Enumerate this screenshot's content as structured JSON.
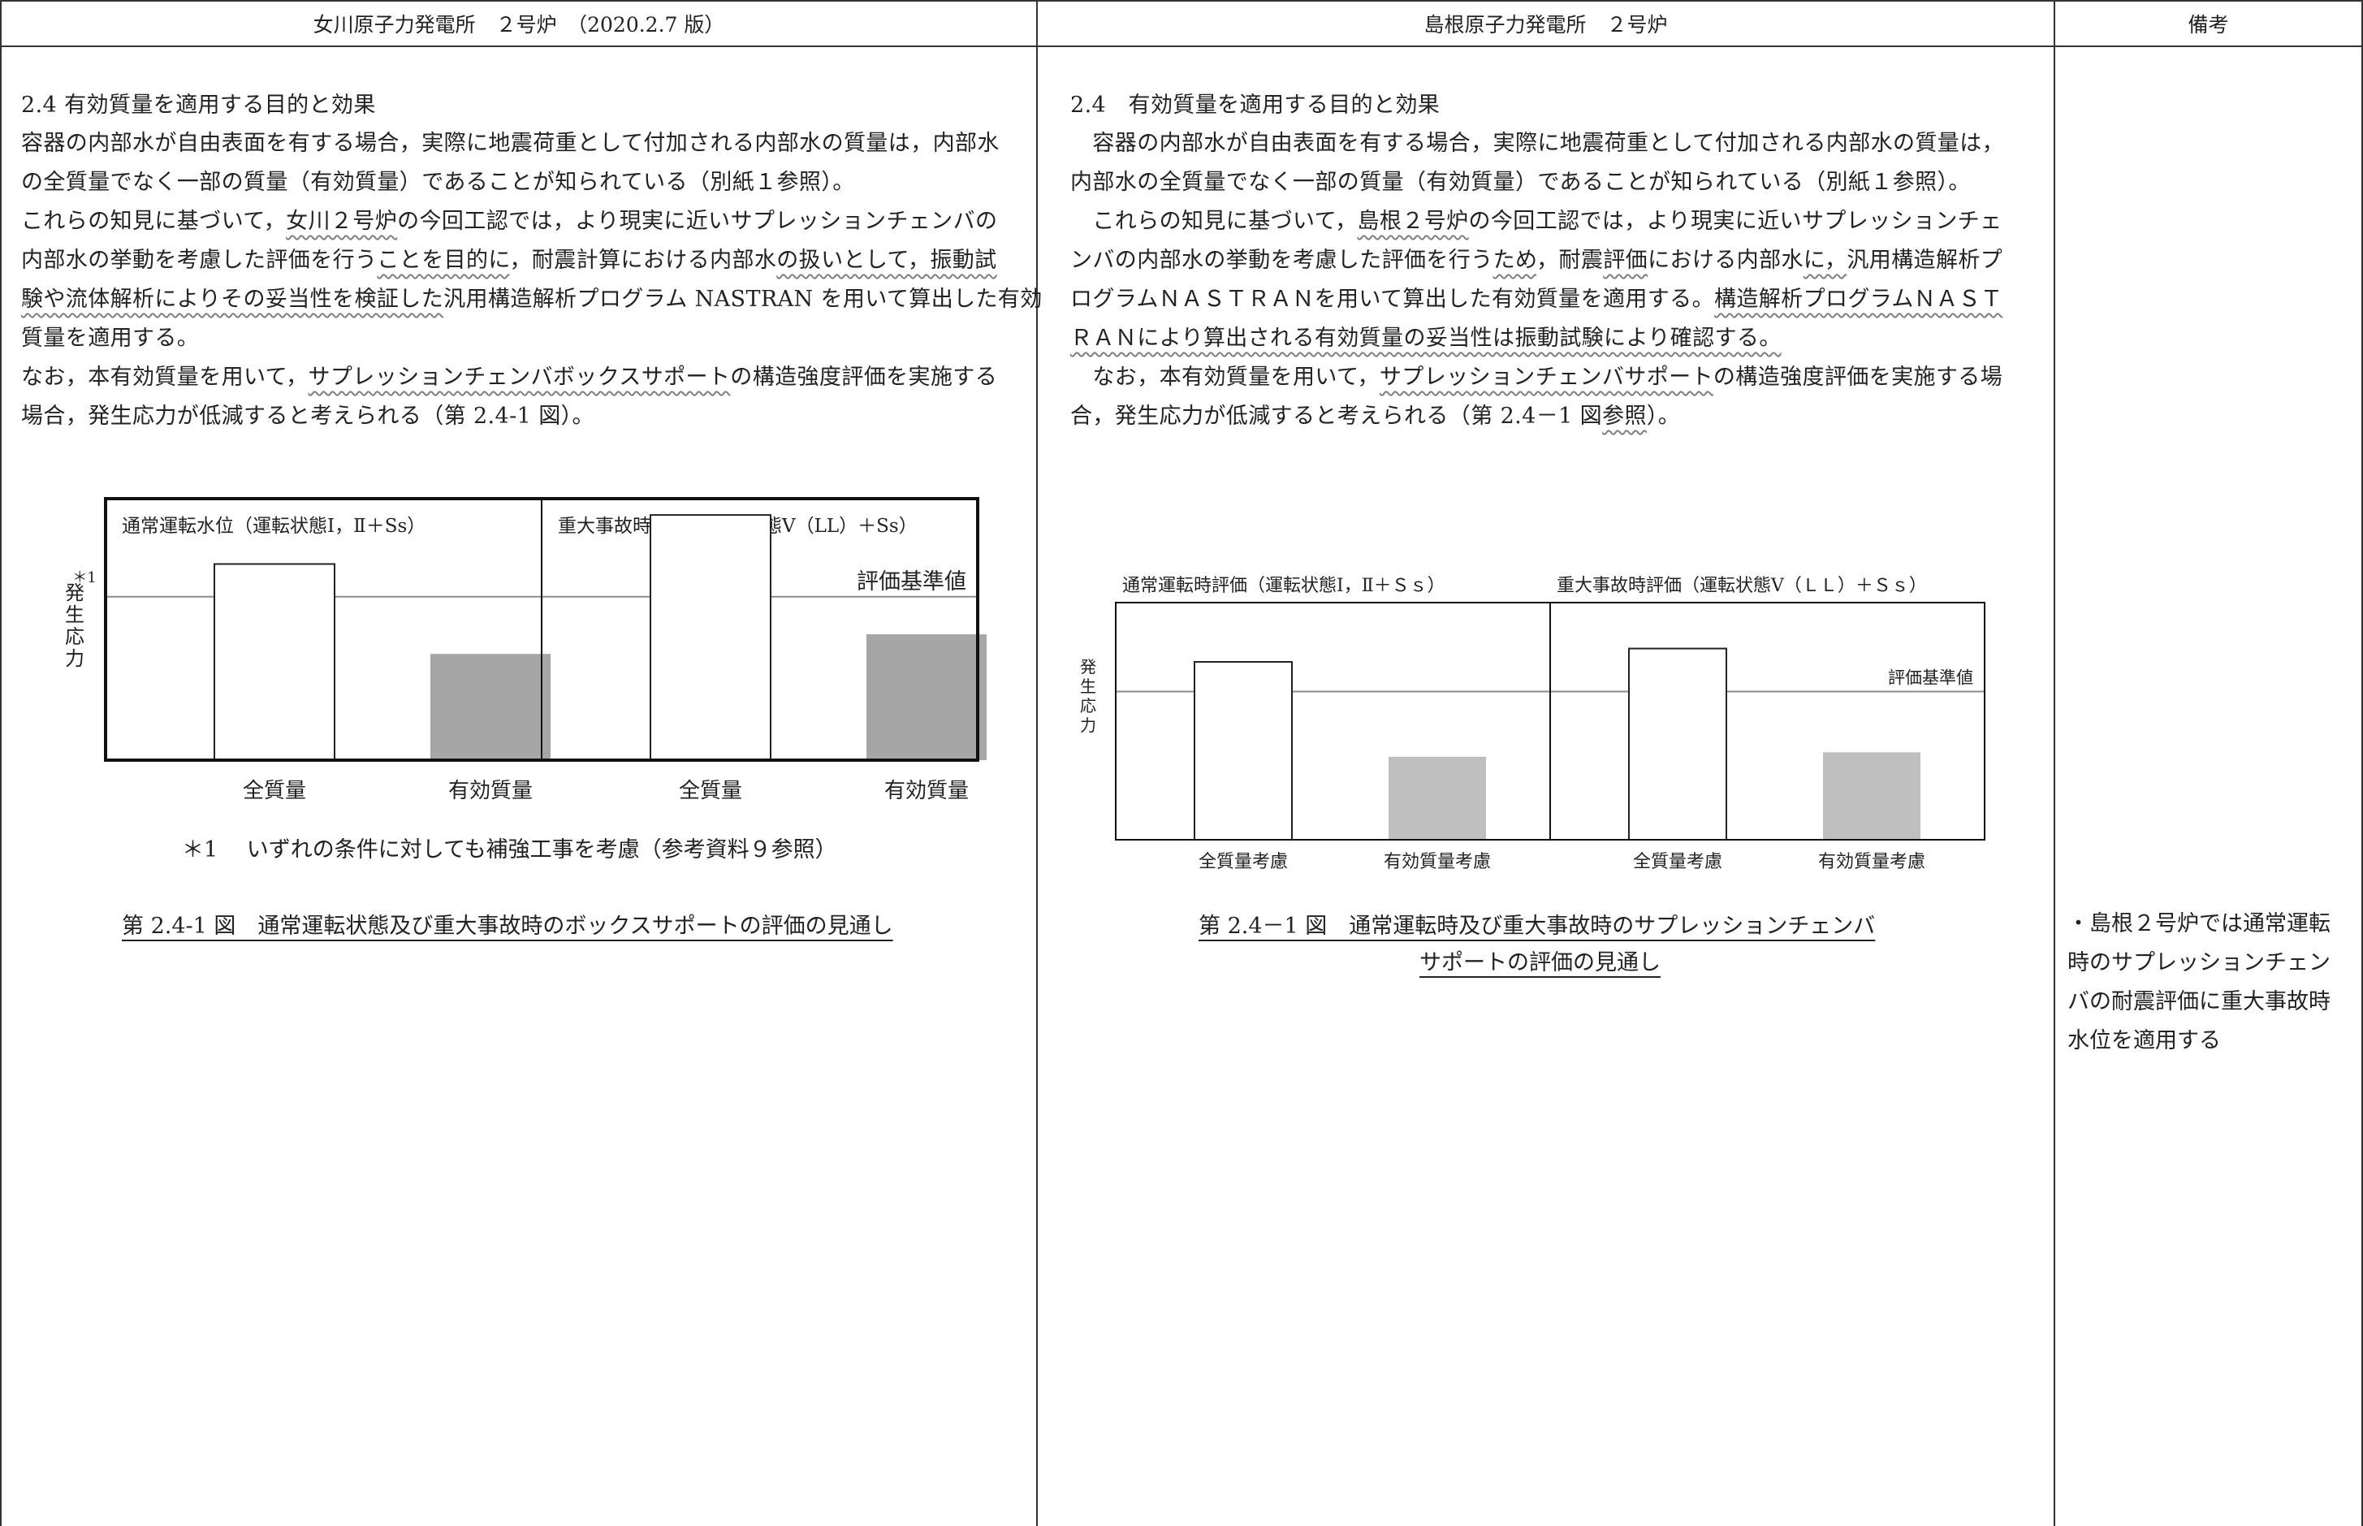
{
  "header": {
    "onagawa": "女川原子力発電所　２号炉　（2020.2.7 版）",
    "shimane": "島根原子力発電所　２号炉",
    "remarks": "備考"
  },
  "left": {
    "heading": "2.4 有効質量を適用する目的と効果",
    "lines": [
      [
        {
          "t": "容器の内部水が自由表面を有する場合，実際に地震荷重として付加される内部水の質量は，内部水"
        }
      ],
      [
        {
          "t": "の全質量でなく一部の質量（有効質量）であることが知られている（別紙１参照）。"
        }
      ],
      [
        {
          "t": "これらの知見に基づいて，"
        },
        {
          "t": "女川２号炉",
          "u": true
        },
        {
          "t": "の今回工認では，より現実に近いサプレッションチェンバの"
        }
      ],
      [
        {
          "t": "内部水の挙動を考慮した評価を行う"
        },
        {
          "t": "ことを目的に",
          "u": true
        },
        {
          "t": "，耐震計算における内部水"
        },
        {
          "t": "の扱いとして，振動試",
          "u": true
        }
      ],
      [
        {
          "t": "験や流体解析によりその妥当性を検証した",
          "u": true
        },
        {
          "t": "汎用構造解析プログラム NASTRAN を用いて算出した有効"
        }
      ],
      [
        {
          "t": "質量を適用する。"
        }
      ],
      [
        {
          "t": "なお，本有効質量を用いて，"
        },
        {
          "t": "サプレッションチェンバボックスサポート",
          "u": true
        },
        {
          "t": "の構造強度評価を実施する"
        }
      ],
      [
        {
          "t": "場合，発生応力が低減すると考えられる（第 2.4-1 図）。"
        }
      ]
    ],
    "chart_note": "＊1　 いずれの条件に対しても補強工事を考慮（参考資料９参照）",
    "caption": "第 2.4-1 図　通常運転状態及び重大事故時のボックスサポートの評価の見通し"
  },
  "middle": {
    "heading": "2.4　有効質量を適用する目的と効果",
    "lines": [
      [
        {
          "t": "　容器の内部水が自由表面を有する場合，実際に地震荷重として付加される内部水の質量は，"
        }
      ],
      [
        {
          "t": "内部水の全質量でなく一部の質量（有効質量）であることが知られている（別紙１参照）。"
        }
      ],
      [
        {
          "t": "　これらの知見に基づいて，"
        },
        {
          "t": "島根２号炉",
          "u": true
        },
        {
          "t": "の今回工認では，より現実に近いサプレッションチェ"
        }
      ],
      [
        {
          "t": "ンバの内部水の挙動を考慮した評価を行う"
        },
        {
          "t": "ため",
          "u": true
        },
        {
          "t": "，耐震"
        },
        {
          "t": "評価",
          "u": true
        },
        {
          "t": "における内部水"
        },
        {
          "t": "に，",
          "u": true
        },
        {
          "t": "汎用構造解析プ"
        }
      ],
      [
        {
          "t": "ログラムＮＡＳＴＲＡＮを用いて算出した有効質量を適用する。"
        },
        {
          "t": "構造解析プログラムＮＡＳＴ",
          "u": true
        }
      ],
      [
        {
          "t": "ＲＡＮにより算出される有効質量の妥当性は振動試験により確認する。",
          "u": true
        }
      ],
      [
        {
          "t": "　なお，本有効質量を用いて，"
        },
        {
          "t": "サプレッションチェンバサポート",
          "u": true
        },
        {
          "t": "の構造強度評価を実施する場"
        }
      ],
      [
        {
          "t": "合，発生応力が低減すると考えられる（第 2.4－1 図"
        },
        {
          "t": "参照",
          "u": true
        },
        {
          "t": "）。"
        }
      ]
    ],
    "caption_lines": [
      "第 2.4－1 図　通常運転時及び重大事故時のサプレッションチェンバ",
      "サポートの評価の見通し"
    ]
  },
  "right": {
    "remark": "・島根２号炉では通常運転時のサプレッションチェンバの耐震評価に重大事故時水位を適用する"
  },
  "chart_data": [
    {
      "type": "bar",
      "chart": "onagawa",
      "panels": [
        {
          "title": "通常運転水位（運転状態Ⅰ，Ⅱ＋Ss）",
          "categories": [
            "全質量",
            "有効質量"
          ],
          "values": [
            1.2,
            0.65
          ]
        },
        {
          "title": "重大事故時水位（運転状態Ⅴ（LL）＋Ss）",
          "categories": [
            "全質量",
            "有効質量"
          ],
          "values": [
            1.5,
            0.77
          ]
        }
      ],
      "ylabel": "発生応力",
      "ylabel_mark": "＊1",
      "threshold": 1.0,
      "threshold_label": "評価基準値",
      "colors": {
        "full": "#ffffff",
        "effective": "#a6a6a6"
      }
    },
    {
      "type": "bar",
      "chart": "shimane",
      "panels": [
        {
          "title": "通常運転時評価（運転状態Ⅰ，Ⅱ＋Ｓｓ）",
          "categories": [
            "全質量考慮",
            "有効質量考慮"
          ],
          "values": [
            1.2,
            0.56
          ]
        },
        {
          "title": "重大事故時評価（運転状態Ⅴ（ＬＬ）＋Ｓｓ）",
          "categories": [
            "全質量考慮",
            "有効質量考慮"
          ],
          "values": [
            1.29,
            0.59
          ]
        }
      ],
      "ylabel": "発生応力",
      "threshold": 1.0,
      "threshold_label": "評価基準値",
      "colors": {
        "full": "#ffffff",
        "effective": "#bfbfbf"
      }
    }
  ]
}
